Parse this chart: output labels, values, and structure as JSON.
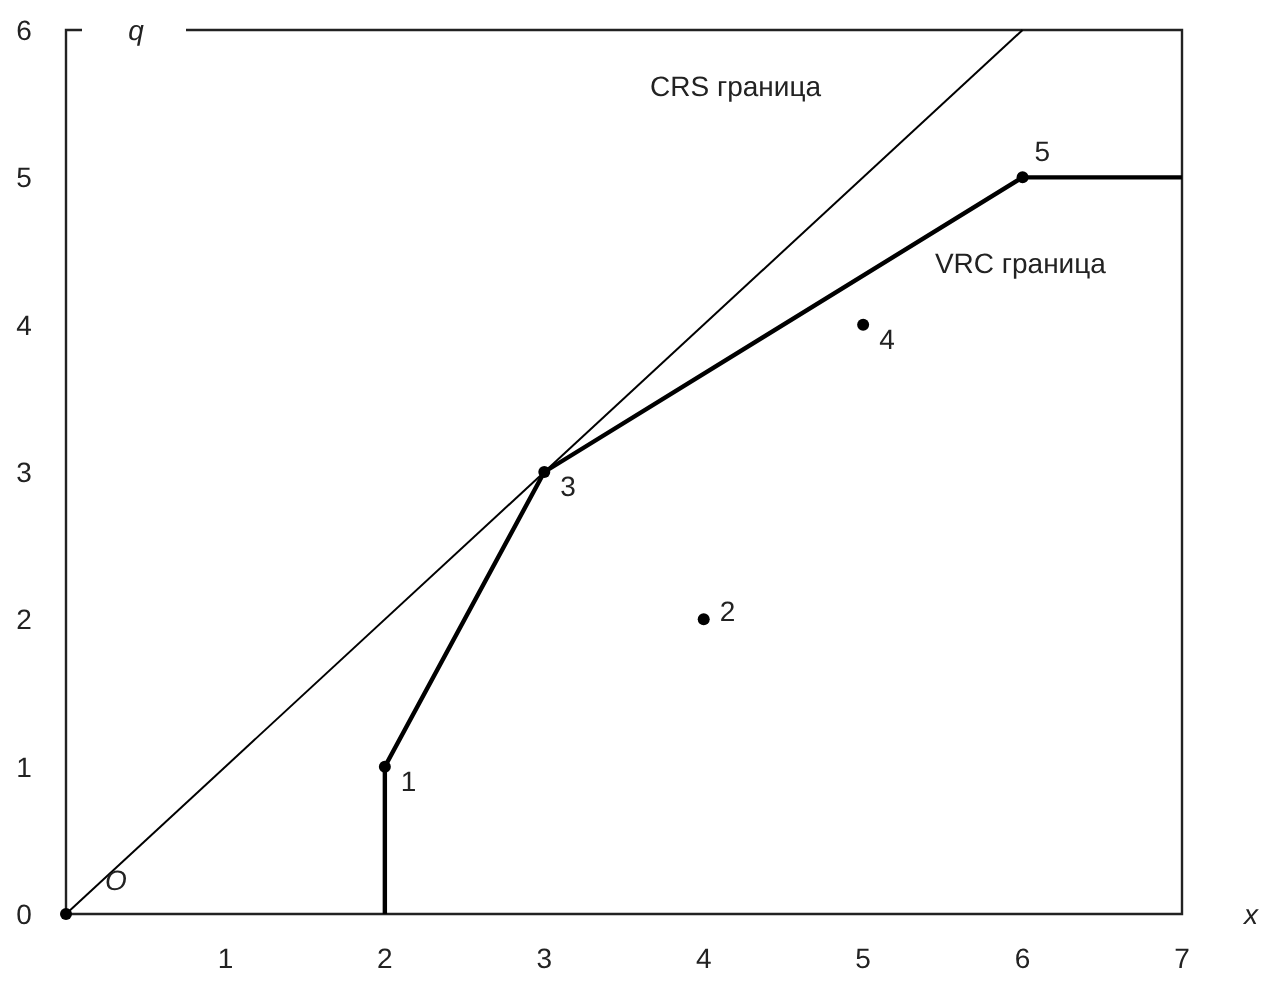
{
  "chart_data": {
    "type": "line",
    "xlabel": "x",
    "ylabel": "q",
    "xlim": [
      0,
      7
    ],
    "ylim": [
      0,
      6
    ],
    "xticks": [
      1,
      2,
      3,
      4,
      5,
      6,
      7
    ],
    "yticks": [
      0,
      1,
      2,
      3,
      4,
      5,
      6
    ],
    "grid": false,
    "series": [
      {
        "color": "#000000",
        "x": [
          0,
          6
        ],
        "values": [
          0,
          6
        ]
      },
      {
        "color": "#000000",
        "x": [
          2,
          2,
          3,
          6,
          7
        ],
        "values": [
          0,
          1,
          3,
          5,
          5
        ]
      },
      {
        "type": "scatter",
        "color": "#000000",
        "x": [
          0,
          2,
          3,
          4,
          5,
          6
        ],
        "values": [
          0,
          1,
          3,
          2,
          4,
          5
        ],
        "marker": "circle"
      }
    ],
    "annotations": [
      "CRS граница",
      "VRC граница",
      {
        "text": "O",
        "x": 0,
        "y": 0
      },
      {
        "text": "1",
        "x": 2,
        "y": 1
      },
      {
        "text": "2",
        "x": 4,
        "y": 2
      },
      {
        "text": "3",
        "x": 3,
        "y": 3
      },
      {
        "text": "4",
        "x": 5,
        "y": 4
      },
      {
        "text": "5",
        "x": 6,
        "y": 5
      }
    ]
  }
}
